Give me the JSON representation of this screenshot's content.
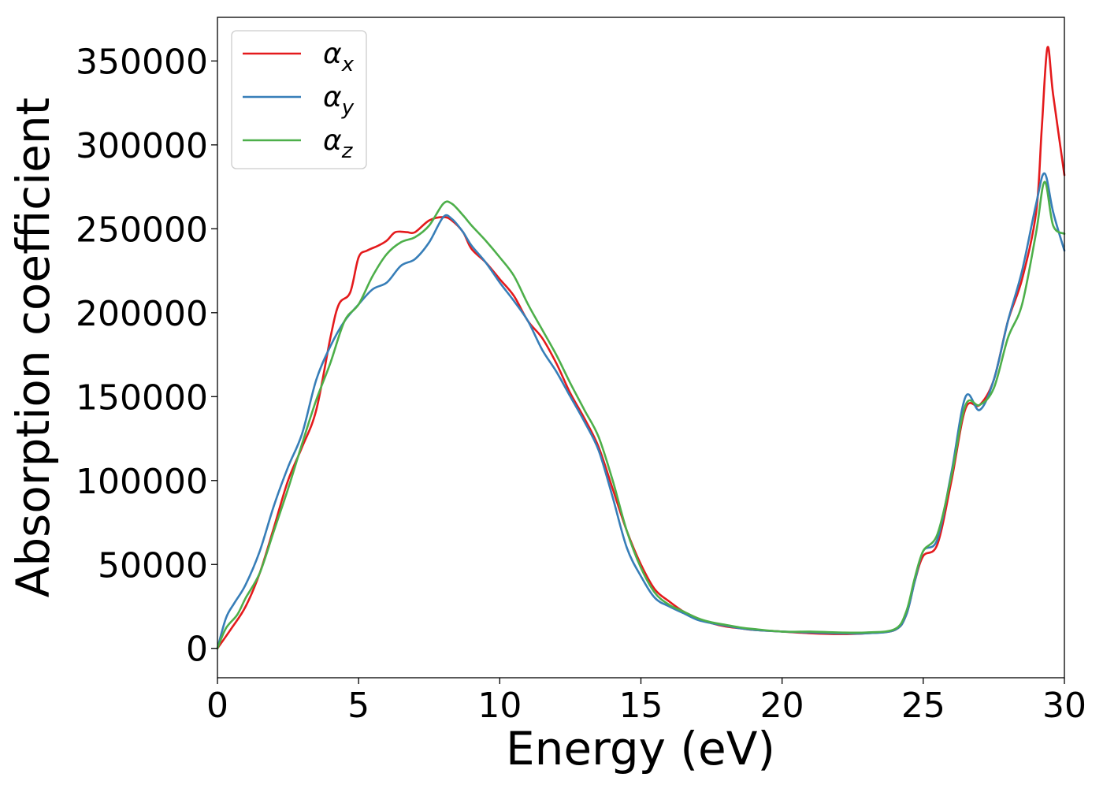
{
  "chart_data": {
    "type": "line",
    "title": "",
    "xlabel": "Energy (eV)",
    "ylabel": "Absorption coefficient",
    "xlim": [
      0,
      30
    ],
    "ylim": [
      -17500,
      376000
    ],
    "xticks": [
      0,
      5,
      10,
      15,
      20,
      25,
      30
    ],
    "xtick_labels": [
      "0",
      "5",
      "10",
      "15",
      "20",
      "25",
      "30"
    ],
    "yticks": [
      0,
      50000,
      100000,
      150000,
      200000,
      250000,
      300000,
      350000
    ],
    "ytick_labels": [
      "0",
      "50000",
      "100000",
      "150000",
      "200000",
      "250000",
      "300000",
      "350000"
    ],
    "grid": false,
    "legend_position": "top-left",
    "series": [
      {
        "name": "αx",
        "legend_base": "α",
        "legend_sub": "x",
        "color": "#e41a1c",
        "x": [
          0,
          0.5,
          1,
          1.5,
          2,
          2.5,
          3,
          3.5,
          4,
          4.3,
          4.7,
          5,
          5.3,
          5.7,
          6,
          6.3,
          6.7,
          7,
          7.5,
          8,
          8.3,
          8.7,
          9,
          9.5,
          10,
          10.5,
          11,
          11.5,
          12,
          12.5,
          13,
          13.5,
          14,
          14.5,
          15,
          15.5,
          16,
          16.5,
          17,
          17.5,
          18,
          18.5,
          19,
          20,
          21,
          22,
          23,
          24,
          24.4,
          24.7,
          25,
          25.5,
          26,
          26.5,
          27,
          27.5,
          28,
          28.5,
          29,
          29.2,
          29.4,
          29.6,
          30
        ],
        "y": [
          0,
          12000,
          25000,
          45000,
          72000,
          100000,
          120000,
          142000,
          185000,
          205000,
          212000,
          233000,
          237000,
          240000,
          243000,
          248000,
          248000,
          248000,
          255000,
          257000,
          255000,
          248000,
          238000,
          230000,
          220000,
          210000,
          195000,
          185000,
          170000,
          152000,
          137000,
          120000,
          95000,
          70000,
          50000,
          35000,
          28000,
          22000,
          18000,
          15000,
          13000,
          12000,
          11000,
          10000,
          9000,
          8500,
          9000,
          11000,
          20000,
          40000,
          55000,
          62000,
          100000,
          143000,
          145000,
          160000,
          195000,
          220000,
          260000,
          310000,
          358000,
          330000,
          282000
        ]
      },
      {
        "name": "αy",
        "legend_base": "α",
        "legend_sub": "y",
        "color": "#377eb8",
        "x": [
          0,
          0.3,
          0.6,
          1,
          1.5,
          2,
          2.5,
          3,
          3.5,
          4,
          4.5,
          5,
          5.5,
          6,
          6.5,
          7,
          7.5,
          8,
          8.3,
          8.7,
          9,
          9.5,
          10,
          10.5,
          11,
          11.5,
          12,
          12.5,
          13,
          13.5,
          14,
          14.5,
          15,
          15.5,
          16,
          16.5,
          17,
          17.5,
          18,
          18.5,
          19,
          20,
          21,
          22,
          23,
          24,
          24.4,
          24.7,
          25,
          25.5,
          26,
          26.5,
          27,
          27.5,
          28,
          28.5,
          29,
          29.3,
          29.6,
          30
        ],
        "y": [
          0,
          18000,
          27000,
          38000,
          58000,
          85000,
          108000,
          128000,
          160000,
          180000,
          195000,
          205000,
          214000,
          218000,
          228000,
          232000,
          242000,
          257000,
          256000,
          248000,
          240000,
          230000,
          218000,
          207000,
          195000,
          178000,
          165000,
          150000,
          135000,
          118000,
          90000,
          60000,
          43000,
          30000,
          25000,
          21000,
          17000,
          15000,
          13500,
          12000,
          11000,
          10000,
          9500,
          9000,
          9000,
          11000,
          20000,
          40000,
          58000,
          65000,
          105000,
          150000,
          142000,
          160000,
          195000,
          225000,
          265000,
          283000,
          260000,
          237000
        ]
      },
      {
        "name": "αz",
        "legend_base": "α",
        "legend_sub": "z",
        "color": "#4daf4a",
        "x": [
          0,
          0.3,
          0.7,
          1,
          1.5,
          2,
          2.5,
          3,
          3.5,
          4,
          4.5,
          5,
          5.5,
          6,
          6.5,
          7,
          7.5,
          8,
          8.3,
          8.7,
          9,
          9.5,
          10,
          10.5,
          11,
          11.5,
          12,
          12.5,
          13,
          13.5,
          14,
          14.5,
          15,
          15.5,
          16,
          16.5,
          17,
          17.5,
          18,
          18.5,
          19,
          20,
          21,
          22,
          23,
          24,
          24.4,
          24.7,
          25,
          25.5,
          26,
          26.5,
          27,
          27.5,
          28,
          28.5,
          29,
          29.3,
          29.6,
          30
        ],
        "y": [
          0,
          12000,
          20000,
          30000,
          45000,
          70000,
          95000,
          122000,
          148000,
          170000,
          195000,
          205000,
          222000,
          235000,
          242000,
          245000,
          252000,
          265000,
          265000,
          258000,
          252000,
          243000,
          233000,
          222000,
          205000,
          190000,
          175000,
          158000,
          142000,
          126000,
          100000,
          70000,
          48000,
          33000,
          26000,
          22000,
          18000,
          15500,
          14000,
          12500,
          11500,
          10000,
          10000,
          9500,
          9500,
          11500,
          22000,
          42000,
          58000,
          68000,
          103000,
          145000,
          145000,
          155000,
          185000,
          205000,
          248000,
          278000,
          252000,
          247000
        ]
      }
    ]
  }
}
